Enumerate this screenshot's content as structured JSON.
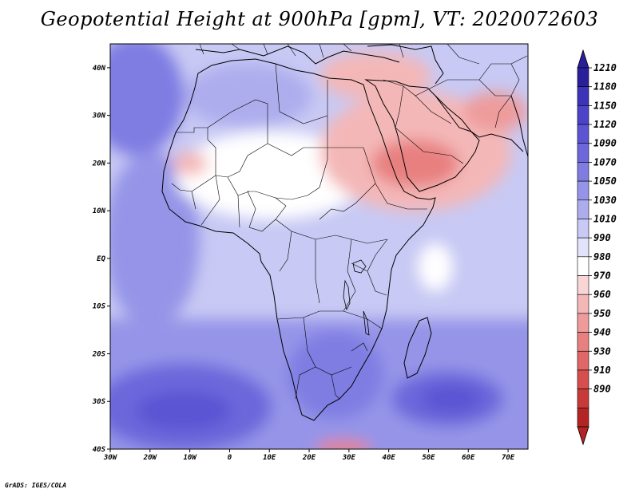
{
  "title": "Geopotential Height at 900hPa [gpm], VT: 2020072603",
  "credit": "GrADS: IGES/COLA",
  "map": {
    "variable": "Geopotential Height",
    "level": "900hPa",
    "units": "gpm",
    "valid_time": "2020072603",
    "lon_range": [
      -30,
      75
    ],
    "lat_range": [
      -40,
      45
    ],
    "lat_labels": [
      "40N",
      "30N",
      "20N",
      "10N",
      "EQ",
      "10S",
      "20S",
      "30S",
      "40S"
    ],
    "lat_values": [
      40,
      30,
      20,
      10,
      0,
      -10,
      -20,
      -30,
      -40
    ],
    "lon_labels": [
      "30W",
      "20W",
      "10W",
      "0",
      "10E",
      "20E",
      "30E",
      "40E",
      "50E",
      "60E",
      "70E"
    ],
    "lon_values": [
      -30,
      -20,
      -10,
      0,
      10,
      20,
      30,
      40,
      50,
      60,
      70
    ]
  },
  "colorbar": {
    "labels": [
      "1210",
      "1180",
      "1150",
      "1120",
      "1090",
      "1070",
      "1050",
      "1030",
      "1010",
      "990",
      "980",
      "970",
      "960",
      "950",
      "940",
      "930",
      "910",
      "890"
    ],
    "colors": [
      "#2a1f9a",
      "#3d33b8",
      "#4c44c8",
      "#5b55d3",
      "#6c68db",
      "#7f7de2",
      "#9594e8",
      "#adadee",
      "#c8c9f4",
      "#e2e3fa",
      "#ffffff",
      "#f9d6d6",
      "#f4b7b7",
      "#ee9b9b",
      "#e88080",
      "#e06767",
      "#d64e4e",
      "#c83a3a",
      "#b52424"
    ],
    "top_arrow": "#2a1f9a",
    "bottom_arrow": "#b52424"
  }
}
